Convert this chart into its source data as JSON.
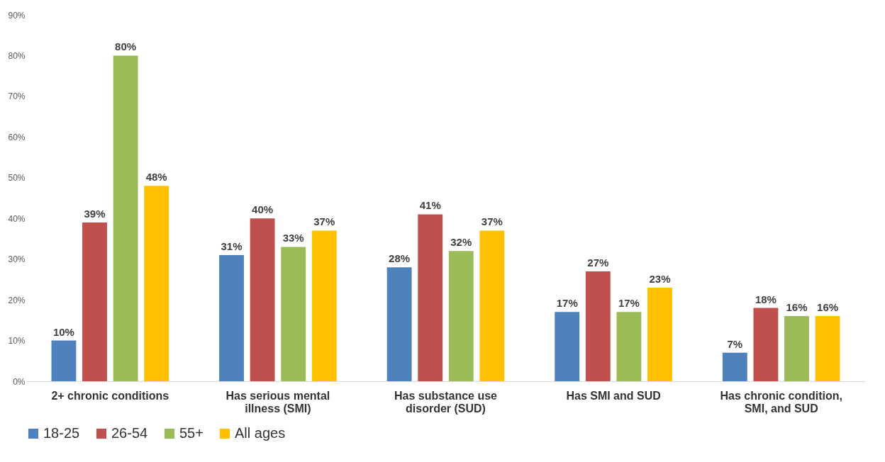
{
  "chart_data": {
    "type": "bar",
    "categories": [
      "2+ chronic conditions",
      "Has serious mental illness (SMI)",
      "Has substance use disorder (SUD)",
      "Has SMI and SUD",
      "Has chronic condition, SMI, and SUD"
    ],
    "series": [
      {
        "name": "18-25",
        "color": "#4f81bd",
        "values": [
          10,
          31,
          28,
          17,
          7
        ],
        "value_labels": [
          "10%",
          "31%",
          "28%",
          "17%",
          "7%"
        ]
      },
      {
        "name": "26-54",
        "color": "#c0504d",
        "values": [
          39,
          40,
          41,
          27,
          18
        ],
        "value_labels": [
          "39%",
          "40%",
          "41%",
          "27%",
          "18%"
        ]
      },
      {
        "name": "55+",
        "color": "#9bbb59",
        "values": [
          80,
          33,
          32,
          17,
          16
        ],
        "value_labels": [
          "80%",
          "33%",
          "32%",
          "17%",
          "16%"
        ]
      },
      {
        "name": "All ages",
        "color": "#ffc000",
        "values": [
          48,
          37,
          37,
          23,
          16
        ],
        "value_labels": [
          "48%",
          "37%",
          "37%",
          "23%",
          "16%"
        ]
      }
    ],
    "ylim": [
      0,
      90
    ],
    "yticks": [
      {
        "value": 0,
        "label": "0%"
      },
      {
        "value": 10,
        "label": "10%"
      },
      {
        "value": 20,
        "label": "20%"
      },
      {
        "value": 30,
        "label": "30%"
      },
      {
        "value": 40,
        "label": "40%"
      },
      {
        "value": 50,
        "label": "50%"
      },
      {
        "value": 60,
        "label": "60%"
      },
      {
        "value": 70,
        "label": "70%"
      },
      {
        "value": 80,
        "label": "80%"
      },
      {
        "value": 90,
        "label": "90%"
      }
    ],
    "grid": false,
    "legend": "bottom"
  }
}
